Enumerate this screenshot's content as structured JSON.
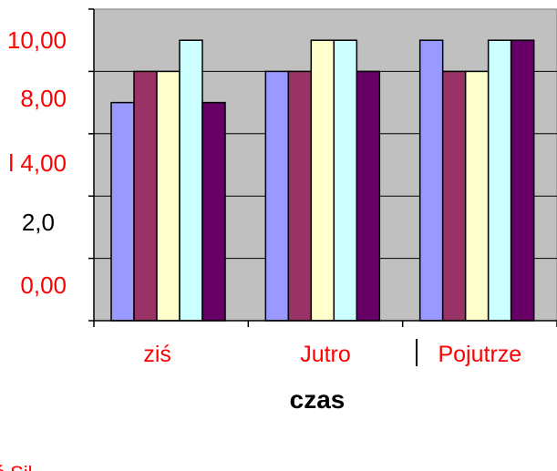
{
  "chart_data": {
    "type": "bar",
    "categories": [
      "ziś",
      "Jutro",
      "Pojutrze"
    ],
    "series": [
      {
        "values": [
          7,
          8,
          9
        ],
        "color": "#9999ff"
      },
      {
        "values": [
          8,
          8,
          8
        ],
        "color": "#993366"
      },
      {
        "values": [
          8,
          9,
          8
        ],
        "color": "#ffffcc"
      },
      {
        "values": [
          9,
          9,
          9
        ],
        "color": "#ccffff"
      },
      {
        "values": [
          7,
          8,
          9
        ],
        "color": "#660066"
      }
    ],
    "ylim": [
      0,
      10
    ],
    "yticks": [
      {
        "label": "10,00",
        "color": "#ff0000"
      },
      {
        "label": "8,00",
        "color": "#ff0000"
      },
      {
        "label": "l 4,00",
        "color": "#ff0000"
      },
      {
        "label": "2,0",
        "color": "#000000"
      },
      {
        "label": "0,00",
        "color": "#ff0000"
      }
    ],
    "xlabel": "czas",
    "category_label_color": "#ff0000",
    "plot_background": "#c0c0c0",
    "grid": true,
    "footer": "ś  Sił"
  }
}
